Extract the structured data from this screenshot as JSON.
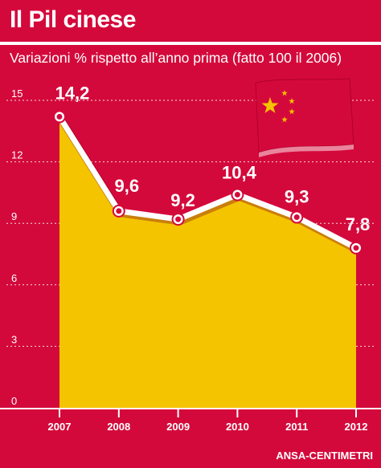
{
  "colors": {
    "background": "#d4093b",
    "area": "#f5c400",
    "line": "#ffffff",
    "text": "#ffffff",
    "flag": "#d4093b",
    "star": "#f5c400"
  },
  "header": {
    "title": "Il Pil cinese",
    "subtitle": "Variazioni % rispetto all’anno prima (fatto 100 il 2006)"
  },
  "footer": {
    "source": "ANSA-CENTIMETRI"
  },
  "decoration": {
    "icon": "china-flag-icon"
  },
  "chart_data": {
    "type": "area",
    "title": "Il Pil cinese",
    "subtitle": "Variazioni % rispetto all’anno prima (fatto 100 il 2006)",
    "x": [
      "2007",
      "2008",
      "2009",
      "2010",
      "2011",
      "2012"
    ],
    "values": [
      14.2,
      9.6,
      9.2,
      10.4,
      9.3,
      7.8
    ],
    "data_labels": [
      "14,2",
      "9,6",
      "9,2",
      "10,4",
      "9,3",
      "7,8"
    ],
    "yticks": [
      0,
      3,
      6,
      9,
      12,
      15
    ],
    "ylim": [
      0,
      15
    ],
    "grid": true,
    "line_markers": true
  }
}
